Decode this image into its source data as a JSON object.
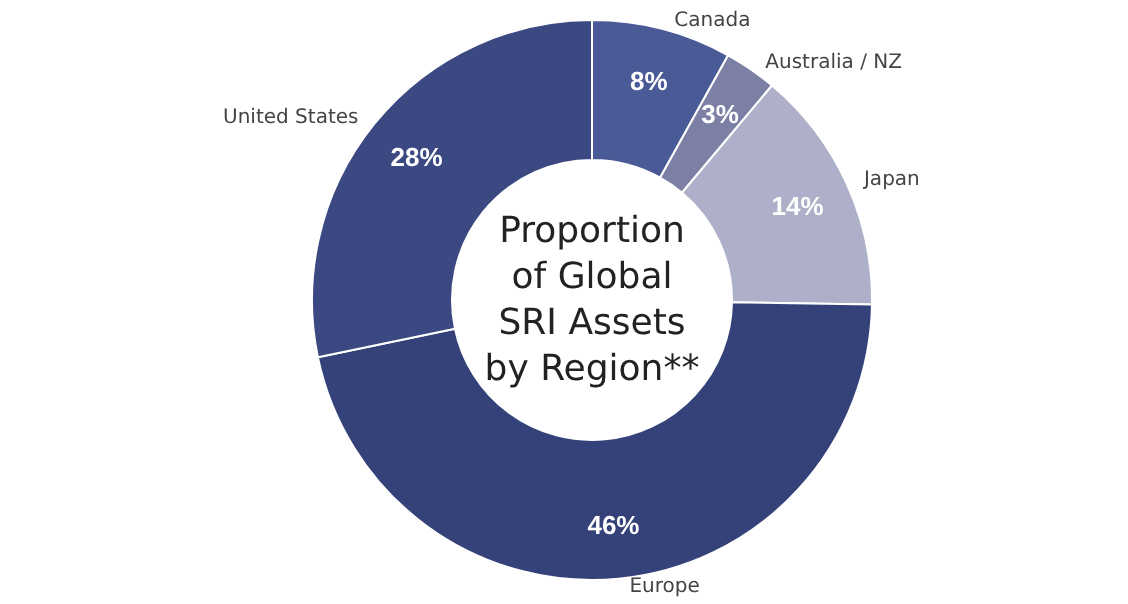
{
  "chart_data": {
    "type": "donut",
    "title": "Proportion\nof Global\nSRI Assets\nby Region**",
    "categories": [
      "Canada",
      "Australia / NZ",
      "Japan",
      "Europe",
      "United States"
    ],
    "values": [
      8,
      3,
      14,
      46,
      28
    ],
    "value_labels": [
      "8%",
      "3%",
      "14%",
      "46%",
      "28%"
    ],
    "colors": [
      "#4a5a96",
      "#7c80a4",
      "#adb0c8",
      "#35427a",
      "#3b4881"
    ]
  }
}
